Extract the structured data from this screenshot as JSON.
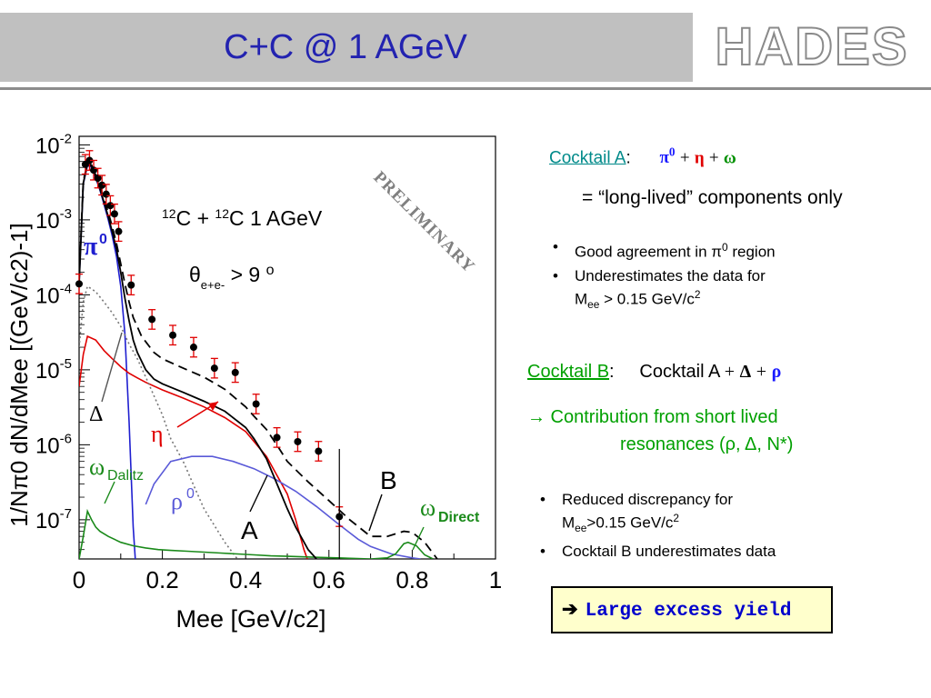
{
  "header": {
    "title": "C+C @ 1 AGeV",
    "logo_text": "HADES"
  },
  "chart_data": {
    "type": "line",
    "title": "",
    "xlabel": "Mee [GeV/c2]",
    "ylabel": "1/Nπ0 dN/dMee [(GeV/c2)-1]",
    "xlim": [
      0,
      1
    ],
    "ylim": [
      3e-08,
      0.013
    ],
    "y_scale": "log",
    "grid": false,
    "x_ticks": [
      "0",
      "0.2",
      "0.4",
      "0.6",
      "0.8",
      "1"
    ],
    "y_ticks": [
      "10-2",
      "10-3",
      "10-4",
      "10-5",
      "10-6",
      "10-7"
    ],
    "annotations": {
      "system": "12C + 12C  1 AGeV",
      "angle_cut": "θe+e- > 9 o",
      "watermark": "PRELIMINARY",
      "label_pi0": "π0",
      "label_delta": "Δ",
      "label_eta": "η",
      "label_omega_dalitz": "ωDalitz",
      "label_rho0": "ρ0",
      "label_omega_direct": "ωDirect",
      "label_A": "A",
      "label_B": "B"
    },
    "colors": {
      "pi0": "#1f1fd0",
      "eta": "#e00000",
      "delta": "#777777",
      "omega": "#1a8a1a",
      "rho": "#5a5ad8",
      "cocktailA": "#000000",
      "cocktailB": "#000000",
      "data": "#000000",
      "errors": "#e00000"
    },
    "data_points": [
      {
        "x": 0.0,
        "y": 0.00014
      },
      {
        "x": 0.015,
        "y": 0.0055
      },
      {
        "x": 0.025,
        "y": 0.0062
      },
      {
        "x": 0.035,
        "y": 0.0046
      },
      {
        "x": 0.045,
        "y": 0.0036
      },
      {
        "x": 0.055,
        "y": 0.0029
      },
      {
        "x": 0.065,
        "y": 0.0022
      },
      {
        "x": 0.075,
        "y": 0.00155
      },
      {
        "x": 0.085,
        "y": 0.0012
      },
      {
        "x": 0.095,
        "y": 0.0007
      },
      {
        "x": 0.125,
        "y": 0.000135
      },
      {
        "x": 0.175,
        "y": 4.7e-05
      },
      {
        "x": 0.225,
        "y": 2.9e-05
      },
      {
        "x": 0.275,
        "y": 2e-05
      },
      {
        "x": 0.325,
        "y": 1.05e-05
      },
      {
        "x": 0.375,
        "y": 9.2e-06
      },
      {
        "x": 0.425,
        "y": 3.5e-06
      },
      {
        "x": 0.475,
        "y": 1.25e-06
      },
      {
        "x": 0.525,
        "y": 1.1e-06
      },
      {
        "x": 0.575,
        "y": 8.2e-07
      },
      {
        "x": 0.625,
        "y": 1.1e-07
      }
    ],
    "series": [
      {
        "key": "pi0",
        "style": "solid",
        "x": [
          0.0,
          0.01,
          0.02,
          0.03,
          0.04,
          0.05,
          0.06,
          0.07,
          0.08,
          0.09,
          0.1,
          0.11,
          0.12,
          0.13,
          0.135
        ],
        "y": [
          0.00014,
          0.003,
          0.0053,
          0.005,
          0.0036,
          0.0025,
          0.0016,
          0.001,
          0.0006,
          0.00032,
          0.00013,
          3e-05,
          2e-06,
          8e-08,
          3e-08
        ]
      },
      {
        "key": "eta",
        "style": "solid",
        "x": [
          0.0,
          0.01,
          0.02,
          0.04,
          0.06,
          0.08,
          0.1,
          0.12,
          0.14,
          0.16,
          0.2,
          0.25,
          0.3,
          0.35,
          0.4,
          0.45,
          0.5,
          0.52,
          0.54,
          0.548
        ],
        "y": [
          6e-06,
          1.6e-05,
          2.8e-05,
          2.5e-05,
          1.8e-05,
          1.4e-05,
          1.1e-05,
          9e-06,
          7.8e-06,
          6.8e-06,
          5.4e-06,
          4.2e-06,
          3.2e-06,
          2.3e-06,
          1.5e-06,
          7e-07,
          2.2e-07,
          1e-07,
          4e-08,
          3e-08
        ]
      },
      {
        "key": "delta",
        "style": "dotted",
        "x": [
          0.0,
          0.01,
          0.02,
          0.04,
          0.06,
          0.08,
          0.1,
          0.12,
          0.14,
          0.16,
          0.2,
          0.22,
          0.25,
          0.28,
          0.3,
          0.35,
          0.38
        ],
        "y": [
          2e-05,
          8e-05,
          0.00013,
          0.00011,
          8e-05,
          5.7e-05,
          3.8e-05,
          2.2e-05,
          1.4e-05,
          8e-06,
          2.5e-06,
          1.2e-06,
          6e-07,
          2.5e-07,
          1.4e-07,
          5e-08,
          3e-08
        ]
      },
      {
        "key": "rho",
        "style": "solid",
        "x": [
          0.16,
          0.18,
          0.22,
          0.27,
          0.32,
          0.37,
          0.42,
          0.47,
          0.52,
          0.57,
          0.62,
          0.67,
          0.7,
          0.75,
          0.8,
          0.82
        ],
        "y": [
          1.6e-07,
          3e-07,
          6e-07,
          7e-07,
          7e-07,
          6e-07,
          4.8e-07,
          3.5e-07,
          2.4e-07,
          1.5e-07,
          9e-08,
          5.5e-08,
          4.4e-08,
          3.5e-08,
          3.1e-08,
          3e-08
        ]
      },
      {
        "key": "omega",
        "style": "solid",
        "x": [
          0.0,
          0.01,
          0.02,
          0.03,
          0.04,
          0.05,
          0.07,
          0.1,
          0.13,
          0.16,
          0.19,
          0.22,
          0.26,
          0.3,
          0.34,
          0.38,
          0.42,
          0.46,
          0.5,
          0.54,
          0.58,
          0.62,
          0.66,
          0.7,
          0.74,
          0.76,
          0.78,
          0.79,
          0.81,
          0.83,
          0.85
        ],
        "y": [
          3e-08,
          6e-08,
          1.3e-07,
          1e-07,
          8e-08,
          7e-08,
          6e-08,
          5e-08,
          4.5e-08,
          4.2e-08,
          4e-08,
          3.9e-08,
          3.8e-08,
          3.7e-08,
          3.6e-08,
          3.5e-08,
          3.4e-08,
          3.3e-08,
          3.25e-08,
          3.2e-08,
          3.15e-08,
          3.1e-08,
          3.05e-08,
          3e-08,
          3.1e-08,
          3.5e-08,
          4.8e-08,
          5e-08,
          4.5e-08,
          3.4e-08,
          3e-08
        ]
      },
      {
        "key": "cocktailA",
        "style": "solid",
        "x": [
          0.0,
          0.01,
          0.02,
          0.03,
          0.04,
          0.05,
          0.06,
          0.07,
          0.08,
          0.09,
          0.1,
          0.11,
          0.12,
          0.13,
          0.14,
          0.16,
          0.18,
          0.2,
          0.25,
          0.3,
          0.35,
          0.4,
          0.42,
          0.45,
          0.48,
          0.5,
          0.52,
          0.55,
          0.57
        ],
        "y": [
          0.00014,
          0.0031,
          0.0055,
          0.0052,
          0.0038,
          0.0026,
          0.0017,
          0.0011,
          0.00068,
          0.0004,
          0.0002,
          9e-05,
          4.5e-05,
          2.5e-05,
          1.7e-05,
          1e-05,
          7.5e-06,
          6.5e-06,
          5e-06,
          3.8e-06,
          2.8e-06,
          1.7e-06,
          1.2e-06,
          6.5e-07,
          2.6e-07,
          1.4e-07,
          8e-08,
          4e-08,
          3e-08
        ]
      },
      {
        "key": "cocktailB",
        "style": "dashed",
        "x": [
          0.0,
          0.01,
          0.02,
          0.03,
          0.04,
          0.05,
          0.06,
          0.07,
          0.08,
          0.09,
          0.1,
          0.11,
          0.12,
          0.13,
          0.15,
          0.18,
          0.2,
          0.25,
          0.3,
          0.35,
          0.4,
          0.42,
          0.45,
          0.48,
          0.5,
          0.55,
          0.6,
          0.65,
          0.7,
          0.74,
          0.78,
          0.8,
          0.83,
          0.86
        ],
        "y": [
          0.00016,
          0.0033,
          0.0057,
          0.0054,
          0.004,
          0.0028,
          0.0019,
          0.00125,
          0.0008,
          0.00048,
          0.00026,
          0.00014,
          8e-05,
          5e-05,
          2.8e-05,
          1.7e-05,
          1.4e-05,
          1.05e-05,
          8e-06,
          5.5e-06,
          3.2e-06,
          2.4e-06,
          1.6e-06,
          9e-07,
          6e-07,
          3.2e-07,
          1.8e-07,
          1e-07,
          6e-08,
          6e-08,
          7e-08,
          6.8e-08,
          5e-08,
          3e-08
        ]
      }
    ]
  },
  "panel": {
    "cocktail_a": {
      "label": "Cocktail A",
      "colon": ":",
      "pi0": "π",
      "pi0_sup": "0",
      "plus1": "+",
      "eta": "η",
      "plus2": "+",
      "omega": "ω",
      "eq": "=  “long-lived” components only"
    },
    "bullets_a": [
      {
        "main": "Good agreement in π",
        "sup": "0",
        "rest": " region"
      },
      {
        "main": "Underestimates the data for",
        "line2": "M",
        "sub": "ee",
        "line2b": " > 0.15 GeV/c",
        "sup2": "2"
      }
    ],
    "cocktail_b": {
      "label": "Cocktail B",
      "colon": ":",
      "text": "Cocktail A",
      "plus1": "+",
      "delta": "Δ",
      "plus2": "+",
      "rho": "ρ"
    },
    "contribution": {
      "arrow": "→",
      "line1": " Contribution from short lived",
      "line2": "resonances (ρ, Δ, N*)"
    },
    "bullets_b": [
      {
        "main": "Reduced discrepancy for",
        "line2": "M",
        "sub": "ee",
        "line2b": ">0.15 GeV/c",
        "sup2": "2"
      },
      {
        "main": "Cocktail B underestimates data"
      }
    ],
    "excess": {
      "arrow": "➔",
      "text": "Large excess yield"
    }
  }
}
